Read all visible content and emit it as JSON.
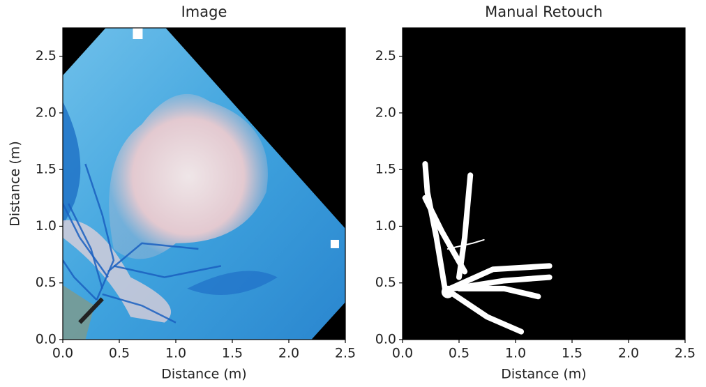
{
  "chart_data": [
    {
      "type": "image",
      "title": "Image",
      "xlabel": "Distance (m)",
      "ylabel": "Distance (m)",
      "xlim": [
        0,
        2.5
      ],
      "ylim": [
        0,
        2.75
      ],
      "xticks": [
        {
          "value": 0,
          "label": "0.0"
        },
        0.5,
        {
          "value": 1,
          "label": "1.0"
        },
        1.5,
        {
          "value": 2,
          "label": "2.0"
        },
        2.5
      ],
      "yticks": [
        {
          "value": 0,
          "label": "0.0"
        },
        0.5,
        {
          "value": 1,
          "label": "1.0"
        },
        1.5,
        {
          "value": 2,
          "label": "2.0"
        },
        2.5
      ]
    },
    {
      "type": "image",
      "title": "Manual Retouch",
      "xlabel": "Distance (m)",
      "xlim": [
        0,
        2.5
      ],
      "ylim": [
        0,
        2.75
      ],
      "xticks": [
        {
          "value": 0,
          "label": "0.0"
        },
        0.5,
        {
          "value": 1,
          "label": "1.0"
        },
        1.5,
        {
          "value": 2,
          "label": "2.0"
        },
        2.5
      ],
      "yticks": [
        {
          "value": 0,
          "label": "0.0"
        },
        0.5,
        {
          "value": 1,
          "label": "1.0"
        },
        1.5,
        {
          "value": 2,
          "label": "2.0"
        },
        2.5
      ]
    }
  ]
}
